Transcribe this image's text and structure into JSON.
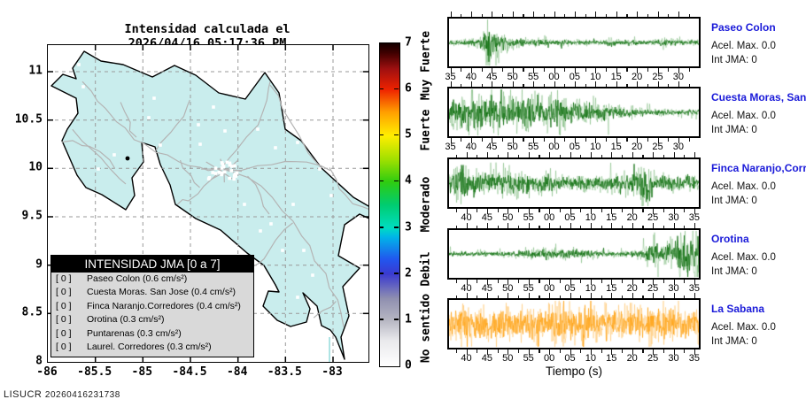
{
  "map": {
    "title": "Intensidad calculada el 2026/04/16_05:17:36_PM",
    "x_tick_labels": [
      "-86",
      "-85.5",
      "-85",
      "-84.5",
      "-84",
      "-83.5",
      "-83"
    ],
    "y_tick_labels": [
      "11",
      "10.5",
      "10",
      "9.5",
      "9",
      "8.5",
      "8"
    ],
    "land_color": "#c9eded",
    "road_color": "#b4b4b4",
    "legend": {
      "title": "INTENSIDAD JMA [0 a 7]",
      "entries": [
        {
          "intensity": "[ 0 ]",
          "station": "Paseo Colon (0.6 cm/s²)"
        },
        {
          "intensity": "[ 0 ]",
          "station": "Cuesta Moras. San Jose (0.4 cm/s²)"
        },
        {
          "intensity": "[ 0 ]",
          "station": "Finca Naranjo.Corredores (0.4 cm/s²)"
        },
        {
          "intensity": "[ 0 ]",
          "station": "Orotina (0.3 cm/s²)"
        },
        {
          "intensity": "[ 0 ]",
          "station": "Puntarenas (0.3 cm/s²)"
        },
        {
          "intensity": "[ 0 ]",
          "station": "Laurel. Corredores (0.3 cm/s²)"
        }
      ]
    }
  },
  "colorbar": {
    "tick_labels": [
      "0",
      "1",
      "2",
      "3",
      "4",
      "5",
      "6",
      "7"
    ],
    "category_labels": [
      {
        "text": "No sentido",
        "value": 0.8
      },
      {
        "text": "Debil",
        "value": 2.1
      },
      {
        "text": "Moderado",
        "value": 3.5
      },
      {
        "text": "Fuerte",
        "value": 5.1
      },
      {
        "text": "Muy Fuerte",
        "value": 6.5
      }
    ],
    "gradient_stops": [
      "#ffffff",
      "#b6b6c2",
      "#3a3ad0",
      "#00ddc0",
      "#2fcc10",
      "#ffee00",
      "#ee2200",
      "#140000"
    ]
  },
  "seismograms": {
    "xlabel": "Tiempo (s)",
    "panels": [
      {
        "name": "Paseo Colon",
        "acel": "Acel. Max. 0.0",
        "jma": "Int JMA: 0",
        "color": "#0e6e0e",
        "light": "rgba(60,150,60,0.40)",
        "seed": 11,
        "tick_offset": 1.5,
        "tick_labels": [
          "35",
          "40",
          "45",
          "50",
          "55",
          "00",
          "05",
          "10",
          "15",
          "20",
          "25",
          "30"
        ],
        "envelope": [
          [
            0,
            0.1
          ],
          [
            0.08,
            0.12
          ],
          [
            0.12,
            0.18
          ],
          [
            0.14,
            0.55
          ],
          [
            0.155,
            1.25
          ],
          [
            0.17,
            0.45
          ],
          [
            0.19,
            0.65
          ],
          [
            0.21,
            0.35
          ],
          [
            0.24,
            0.18
          ],
          [
            0.27,
            0.22
          ],
          [
            0.3,
            0.12
          ],
          [
            0.36,
            0.14
          ],
          [
            0.4,
            0.1
          ],
          [
            0.44,
            0.12
          ],
          [
            0.5,
            0.08
          ],
          [
            0.55,
            0.1
          ],
          [
            0.6,
            0.07
          ],
          [
            0.655,
            0.16
          ],
          [
            0.7,
            0.08
          ],
          [
            0.76,
            0.09
          ],
          [
            0.8,
            0.07
          ],
          [
            0.88,
            0.15
          ],
          [
            0.92,
            0.1
          ],
          [
            1,
            0.09
          ]
        ]
      },
      {
        "name": "Cuesta Moras, San Jose",
        "acel": "Acel. Max. 0.0",
        "jma": "Int JMA: 0",
        "color": "#0e6e0e",
        "light": "rgba(60,150,60,0.40)",
        "seed": 22,
        "tick_offset": 1.5,
        "tick_labels": [
          "35",
          "40",
          "45",
          "50",
          "55",
          "00",
          "05",
          "10",
          "15",
          "20",
          "25",
          "30"
        ],
        "envelope": [
          [
            0,
            0.45
          ],
          [
            0.05,
            0.6
          ],
          [
            0.1,
            0.95
          ],
          [
            0.13,
            0.7
          ],
          [
            0.18,
            0.55
          ],
          [
            0.22,
            0.65
          ],
          [
            0.28,
            0.6
          ],
          [
            0.33,
            0.7
          ],
          [
            0.38,
            0.55
          ],
          [
            0.45,
            0.5
          ],
          [
            0.52,
            0.45
          ],
          [
            0.58,
            0.35
          ],
          [
            0.65,
            0.25
          ],
          [
            0.72,
            0.18
          ],
          [
            0.8,
            0.12
          ],
          [
            0.9,
            0.1
          ],
          [
            1,
            0.1
          ]
        ]
      },
      {
        "name": "Finca Naranjo,Corredores",
        "acel": "Acel. Max. 0.0",
        "jma": "Int JMA: 0",
        "color": "#0e6e0e",
        "light": "rgba(60,150,60,0.40)",
        "seed": 33,
        "tick_offset": 19.5,
        "tick_labels": [
          "40",
          "45",
          "50",
          "55",
          "00",
          "05",
          "10",
          "15",
          "20",
          "25",
          "30",
          "35"
        ],
        "envelope": [
          [
            0,
            0.3
          ],
          [
            0.03,
            0.55
          ],
          [
            0.05,
            0.95
          ],
          [
            0.07,
            0.4
          ],
          [
            0.1,
            0.5
          ],
          [
            0.13,
            0.35
          ],
          [
            0.17,
            0.45
          ],
          [
            0.2,
            0.5
          ],
          [
            0.25,
            0.45
          ],
          [
            0.3,
            0.5
          ],
          [
            0.35,
            0.4
          ],
          [
            0.4,
            0.35
          ],
          [
            0.45,
            0.3
          ],
          [
            0.5,
            0.25
          ],
          [
            0.55,
            0.3
          ],
          [
            0.6,
            0.28
          ],
          [
            0.65,
            0.3
          ],
          [
            0.7,
            0.32
          ],
          [
            0.75,
            0.45
          ],
          [
            0.785,
            0.95
          ],
          [
            0.82,
            0.4
          ],
          [
            0.87,
            0.3
          ],
          [
            0.92,
            0.32
          ],
          [
            1,
            0.28
          ]
        ]
      },
      {
        "name": "Orotina",
        "acel": "Acel. Max. 0.0",
        "jma": "Int JMA: 0",
        "color": "#0e6e0e",
        "light": "rgba(60,150,60,0.40)",
        "seed": 44,
        "tick_offset": 19.5,
        "tick_labels": [
          "40",
          "45",
          "50",
          "55",
          "00",
          "05",
          "10",
          "15",
          "20",
          "25",
          "30",
          "35"
        ],
        "envelope": [
          [
            0,
            0.09
          ],
          [
            0.1,
            0.1
          ],
          [
            0.2,
            0.09
          ],
          [
            0.3,
            0.12
          ],
          [
            0.38,
            0.22
          ],
          [
            0.45,
            0.18
          ],
          [
            0.5,
            0.22
          ],
          [
            0.55,
            0.18
          ],
          [
            0.62,
            0.12
          ],
          [
            0.68,
            0.1
          ],
          [
            0.74,
            0.12
          ],
          [
            0.79,
            0.3
          ],
          [
            0.82,
            0.5
          ],
          [
            0.85,
            0.3
          ],
          [
            0.88,
            0.45
          ],
          [
            0.91,
            0.6
          ],
          [
            0.94,
            1.0
          ],
          [
            0.97,
            0.8
          ],
          [
            1,
            0.95
          ]
        ]
      },
      {
        "name": "La Sabana",
        "acel": "Acel. Max. 0.0",
        "jma": "Int JMA: 0",
        "color": "#ffa519",
        "light": "rgba(255,185,80,0.55)",
        "seed": 55,
        "tick_offset": 19.5,
        "tick_labels": [
          "40",
          "45",
          "50",
          "55",
          "00",
          "05",
          "10",
          "15",
          "20",
          "25",
          "30",
          "35"
        ],
        "envelope": [
          [
            0,
            0.5
          ],
          [
            0.1,
            0.6
          ],
          [
            0.2,
            0.55
          ],
          [
            0.3,
            0.6
          ],
          [
            0.4,
            0.55
          ],
          [
            0.5,
            0.65
          ],
          [
            0.6,
            0.6
          ],
          [
            0.7,
            0.55
          ],
          [
            0.8,
            0.65
          ],
          [
            0.9,
            0.55
          ],
          [
            1,
            0.5
          ]
        ]
      }
    ]
  },
  "footer": {
    "brand": "LISUCR",
    "code": "20260416231738"
  }
}
